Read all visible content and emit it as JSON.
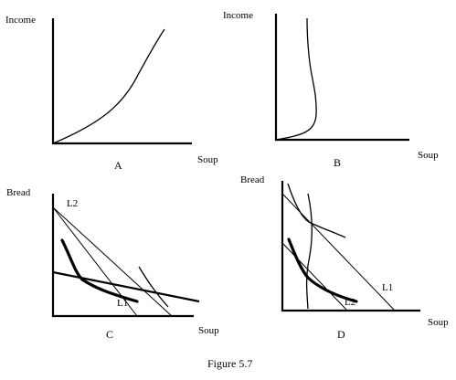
{
  "figure": {
    "caption": "Figure 5.7",
    "panels": {
      "A": {
        "letter": "A",
        "ylabel": "Income",
        "xlabel": "Soup"
      },
      "B": {
        "letter": "B",
        "ylabel": "Income",
        "xlabel": "Soup"
      },
      "C": {
        "letter": "C",
        "ylabel": "Bread",
        "xlabel": "Soup",
        "line1": "L1",
        "line2": "L2"
      },
      "D": {
        "letter": "D",
        "ylabel": "Bread",
        "xlabel": "Soup",
        "line1": "L1",
        "line2": "L2"
      }
    }
  }
}
